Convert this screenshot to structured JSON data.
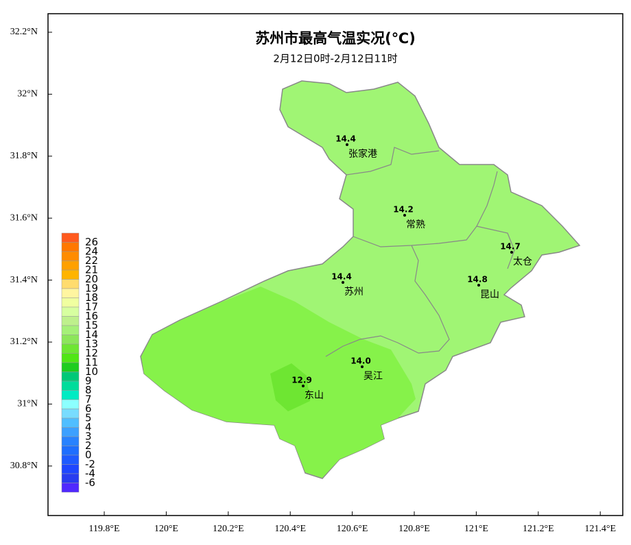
{
  "title": "苏州市最高气温实况(℃)",
  "subtitle": "2月12日0时-2月12日11时",
  "lat_ticks": [
    "32.2°N",
    "32°N",
    "31.8°N",
    "31.6°N",
    "31.4°N",
    "31.2°N",
    "31°N",
    "30.8°N"
  ],
  "lon_ticks": [
    "119.8°E",
    "120°E",
    "120.2°E",
    "120.4°E",
    "120.6°E",
    "120.8°E",
    "121°E",
    "121.2°E",
    "121.4°E"
  ],
  "stations": [
    {
      "name": "张家港",
      "value": "14.4"
    },
    {
      "name": "常熟",
      "value": "14.2"
    },
    {
      "name": "太仓",
      "value": "14.7"
    },
    {
      "name": "昆山",
      "value": "14.8"
    },
    {
      "name": "苏州",
      "value": "14.4"
    },
    {
      "name": "吴江",
      "value": "14.0"
    },
    {
      "name": "东山",
      "value": "12.9"
    }
  ],
  "legend": {
    "labels": [
      "26",
      "24",
      "22",
      "21",
      "20",
      "19",
      "18",
      "17",
      "16",
      "15",
      "14",
      "13",
      "12",
      "11",
      "10",
      "9",
      "8",
      "7",
      "6",
      "5",
      "4",
      "3",
      "2",
      "0",
      "-2",
      "-4",
      "-6"
    ],
    "colors": [
      "#ff5a1e",
      "#ff7800",
      "#ff8c00",
      "#ffa000",
      "#ffb400",
      "#ffdc6e",
      "#fff5a0",
      "#f0ffa0",
      "#d7ffa0",
      "#bef08c",
      "#a5f078",
      "#8ce65a",
      "#6ee632",
      "#50e614",
      "#1ecd1e",
      "#00c878",
      "#00dc9b",
      "#00ebc3",
      "#8cffff",
      "#78dcff",
      "#50beff",
      "#3ca0ff",
      "#2882ff",
      "#1e6eff",
      "#1e5aff",
      "#1e46ff",
      "#283cf0",
      "#5028ff"
    ]
  }
}
